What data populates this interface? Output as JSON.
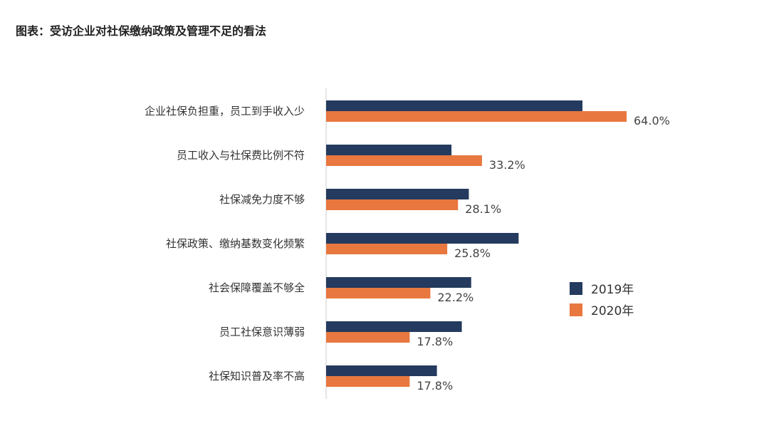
{
  "chart_data": {
    "type": "bar",
    "orientation": "horizontal",
    "title": "图表：受访企业对社保缴纳政策及管理不足的看法",
    "categories": [
      "企业社保负担重，员工到手收入少",
      "员工收入与社保费比例不符",
      "社保减免力度不够",
      "社保政策、缴纳基数变化频繁",
      "社会保障覆盖不够全",
      "员工社保意识薄弱",
      "社保知识普及率不高"
    ],
    "series": [
      {
        "name": "2019年",
        "color": "#243a5e",
        "values": [
          54.6,
          26.7,
          30.4,
          41.0,
          30.9,
          28.9,
          23.6
        ]
      },
      {
        "name": "2020年",
        "color": "#e8783f",
        "values": [
          64.0,
          33.2,
          28.1,
          25.8,
          22.2,
          17.8,
          17.8
        ],
        "labels": [
          "64.0%",
          "33.2%",
          "28.1%",
          "25.8%",
          "22.2%",
          "17.8%",
          "17.8%"
        ]
      }
    ],
    "xlim": [
      0,
      64
    ],
    "grid": false,
    "legend": "right"
  }
}
